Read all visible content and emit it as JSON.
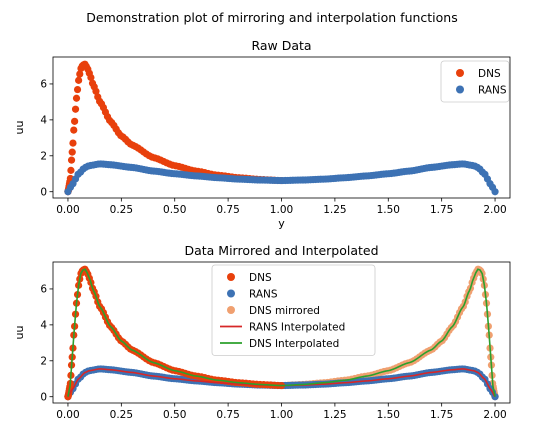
{
  "figure": {
    "suptitle": "Demonstration plot of mirroring and interpolation functions"
  },
  "colors": {
    "dns": "#e8400c",
    "rans": "#3d72b4",
    "dns_mirrored": "#f0a070",
    "rans_interpolated": "#d62728",
    "dns_interpolated": "#2ca02c"
  },
  "chart_data": [
    {
      "type": "scatter",
      "title": "Raw Data",
      "xlabel": "y",
      "ylabel": "uu",
      "xlim": [
        -0.07,
        2.07
      ],
      "ylim": [
        -0.35,
        7.5
      ],
      "xticks": [
        "0.00",
        "0.25",
        "0.50",
        "0.75",
        "1.00",
        "1.25",
        "1.50",
        "1.75",
        "2.00"
      ],
      "yticks": [
        "0",
        "2",
        "4",
        "6"
      ],
      "legend": {
        "placement": "top-right",
        "entries": [
          "DNS",
          "RANS"
        ]
      },
      "series": [
        {
          "name": "DNS",
          "marker": "circle",
          "x_range": [
            0.0,
            1.0
          ],
          "points": [
            [
              0.0,
              0.0
            ],
            [
              0.01,
              0.6
            ],
            [
              0.02,
              2.2
            ],
            [
              0.03,
              3.8
            ],
            [
              0.04,
              5.2
            ],
            [
              0.05,
              6.2
            ],
            [
              0.06,
              6.85
            ],
            [
              0.07,
              7.05
            ],
            [
              0.08,
              7.1
            ],
            [
              0.09,
              6.9
            ],
            [
              0.1,
              6.6
            ],
            [
              0.12,
              5.9
            ],
            [
              0.15,
              5.0
            ],
            [
              0.2,
              3.9
            ],
            [
              0.25,
              3.1
            ],
            [
              0.3,
              2.6
            ],
            [
              0.4,
              1.9
            ],
            [
              0.5,
              1.45
            ],
            [
              0.6,
              1.15
            ],
            [
              0.7,
              0.92
            ],
            [
              0.8,
              0.78
            ],
            [
              0.9,
              0.68
            ],
            [
              1.0,
              0.62
            ]
          ]
        },
        {
          "name": "RANS",
          "marker": "circle",
          "x_range": [
            0.0,
            2.0
          ],
          "points": [
            [
              0.0,
              0.0
            ],
            [
              0.02,
              0.4
            ],
            [
              0.05,
              1.0
            ],
            [
              0.08,
              1.35
            ],
            [
              0.1,
              1.45
            ],
            [
              0.15,
              1.55
            ],
            [
              0.2,
              1.5
            ],
            [
              0.3,
              1.35
            ],
            [
              0.4,
              1.15
            ],
            [
              0.5,
              1.0
            ],
            [
              0.6,
              0.88
            ],
            [
              0.7,
              0.78
            ],
            [
              0.8,
              0.7
            ],
            [
              0.9,
              0.65
            ],
            [
              1.0,
              0.62
            ],
            [
              1.1,
              0.65
            ],
            [
              1.2,
              0.7
            ],
            [
              1.3,
              0.78
            ],
            [
              1.4,
              0.88
            ],
            [
              1.5,
              1.0
            ],
            [
              1.6,
              1.15
            ],
            [
              1.7,
              1.35
            ],
            [
              1.8,
              1.5
            ],
            [
              1.85,
              1.55
            ],
            [
              1.9,
              1.45
            ],
            [
              1.92,
              1.35
            ],
            [
              1.95,
              1.0
            ],
            [
              1.98,
              0.4
            ],
            [
              2.0,
              0.0
            ]
          ]
        }
      ]
    },
    {
      "type": "scatter",
      "title": "Data Mirrored and Interpolated",
      "xlabel": "",
      "ylabel": "uu",
      "xlim": [
        -0.07,
        2.07
      ],
      "ylim": [
        -0.35,
        7.5
      ],
      "xticks": [
        "0.00",
        "0.25",
        "0.50",
        "0.75",
        "1.00",
        "1.25",
        "1.50",
        "1.75",
        "2.00"
      ],
      "yticks": [
        "0",
        "2",
        "4",
        "6"
      ],
      "legend": {
        "placement": "top-center",
        "entries": [
          "DNS",
          "RANS",
          "DNS mirrored",
          "RANS Interpolated",
          "DNS Interpolated"
        ]
      },
      "series": [
        {
          "name": "DNS",
          "marker": "circle",
          "x_range": [
            0.0,
            1.0
          ]
        },
        {
          "name": "RANS",
          "marker": "circle",
          "x_range": [
            0.0,
            2.0
          ]
        },
        {
          "name": "DNS mirrored",
          "marker": "circle",
          "x_range": [
            1.0,
            2.0
          ]
        },
        {
          "name": "RANS Interpolated",
          "marker": "line",
          "x_range": [
            0.0,
            2.0
          ]
        },
        {
          "name": "DNS Interpolated",
          "marker": "line",
          "x_range": [
            0.0,
            2.0
          ]
        }
      ]
    }
  ]
}
